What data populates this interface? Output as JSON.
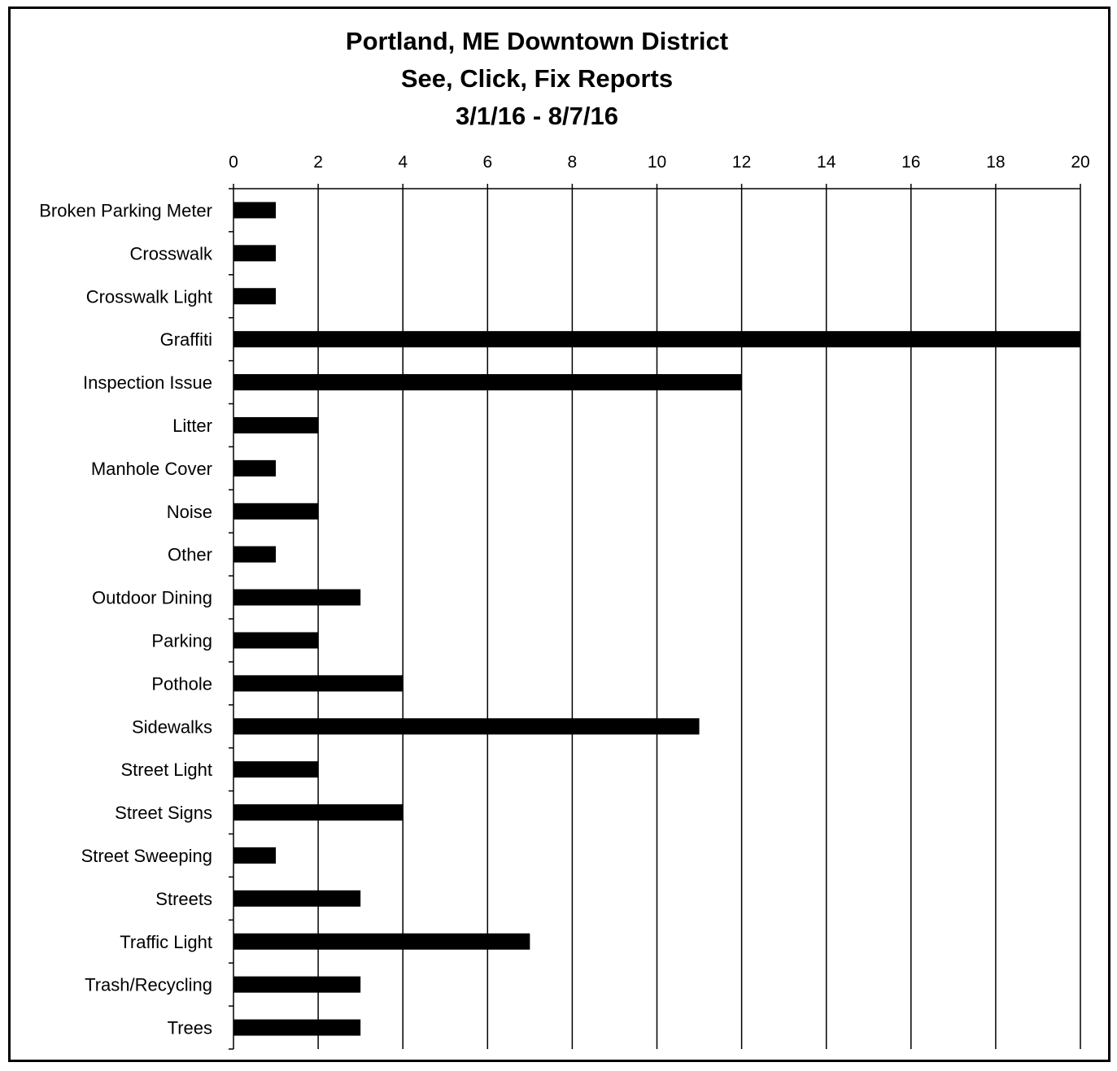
{
  "chart_data": {
    "type": "bar",
    "orientation": "horizontal",
    "title_lines": [
      "Portland, ME Downtown District",
      "See, Click, Fix Reports",
      "3/1/16 - 8/7/16"
    ],
    "xlabel": "",
    "ylabel": "",
    "xlim": [
      0,
      20
    ],
    "x_ticks": [
      "0",
      "2",
      "4",
      "6",
      "8",
      "10",
      "12",
      "14",
      "16",
      "18",
      "20"
    ],
    "x_axis_position": "top",
    "grid": true,
    "legend": "none",
    "bar_color": "#000000",
    "categories": [
      "Broken Parking Meter",
      "Crosswalk",
      "Crosswalk Light",
      "Graffiti",
      "Inspection Issue",
      "Litter",
      "Manhole Cover",
      "Noise",
      "Other",
      "Outdoor Dining",
      "Parking",
      "Pothole",
      "Sidewalks",
      "Street Light",
      "Street Signs",
      "Street Sweeping",
      "Streets",
      "Traffic Light",
      "Trash/Recycling",
      "Trees"
    ],
    "values": [
      1,
      1,
      1,
      20,
      12,
      2,
      1,
      2,
      1,
      3,
      2,
      4,
      11,
      2,
      4,
      1,
      3,
      7,
      3,
      3
    ]
  }
}
